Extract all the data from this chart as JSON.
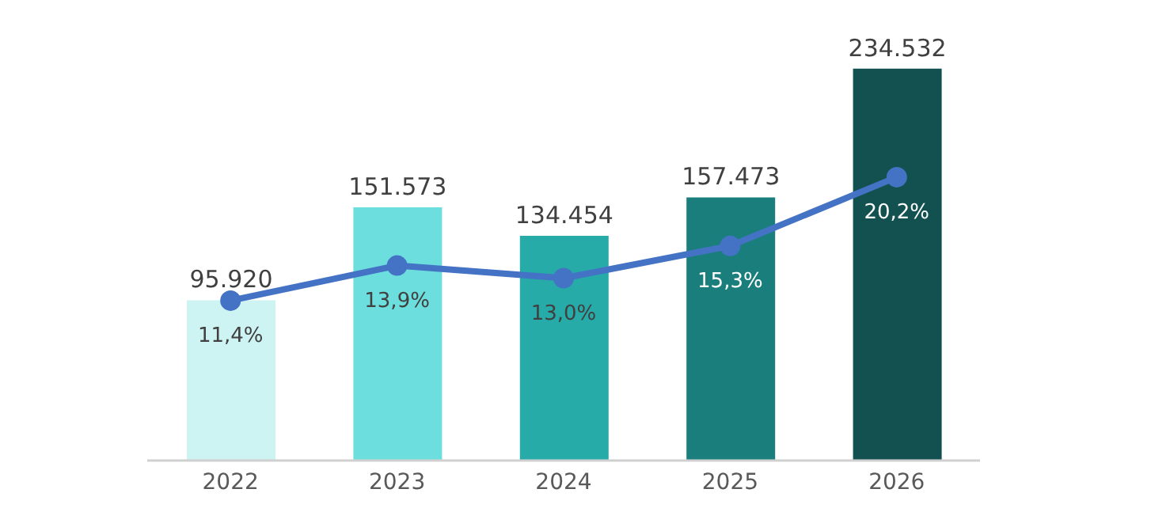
{
  "chart_data": {
    "type": "bar",
    "categories": [
      "2022",
      "2023",
      "2024",
      "2025",
      "2026"
    ],
    "series": [
      {
        "colors": [
          "#cdf3f2",
          "#6cdedd",
          "#26aba9",
          "#1a7f7c",
          "#12514f"
        ],
        "values": [
          95920,
          151573,
          134454,
          157473,
          234532
        ],
        "value_labels": [
          "95.920",
          "151.573",
          "134.454",
          "157.473",
          "234.532"
        ]
      },
      {
        "type": "line",
        "axis": "y2",
        "color": "#4472c4",
        "values": [
          11.4,
          13.9,
          13.0,
          15.3,
          20.2
        ],
        "value_labels": [
          "11,4%",
          "13,9%",
          "13,0%",
          "15,3%",
          "20,2%"
        ]
      }
    ],
    "tick_labels": "x",
    "grid": false,
    "legend": false,
    "marker": "circle",
    "line_style": "solid"
  }
}
